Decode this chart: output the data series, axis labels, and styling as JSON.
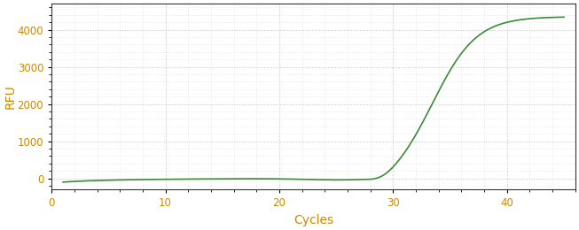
{
  "xlabel": "Cycles",
  "ylabel": "RFU",
  "line_color": "#3a8a3a",
  "background_color": "#ffffff",
  "plot_bg_color": "#ffffff",
  "grid_color": "#999999",
  "xlim": [
    0,
    46
  ],
  "ylim": [
    -300,
    4700
  ],
  "xticks": [
    0,
    10,
    20,
    30,
    40
  ],
  "yticks": [
    0,
    1000,
    2000,
    3000,
    4000
  ],
  "tick_color": "#cc8800",
  "label_color": "#cc8800",
  "x_start": 1,
  "x_end": 45,
  "sigmoid_L": 4600,
  "sigmoid_k": 0.52,
  "sigmoid_x0": 33.5
}
